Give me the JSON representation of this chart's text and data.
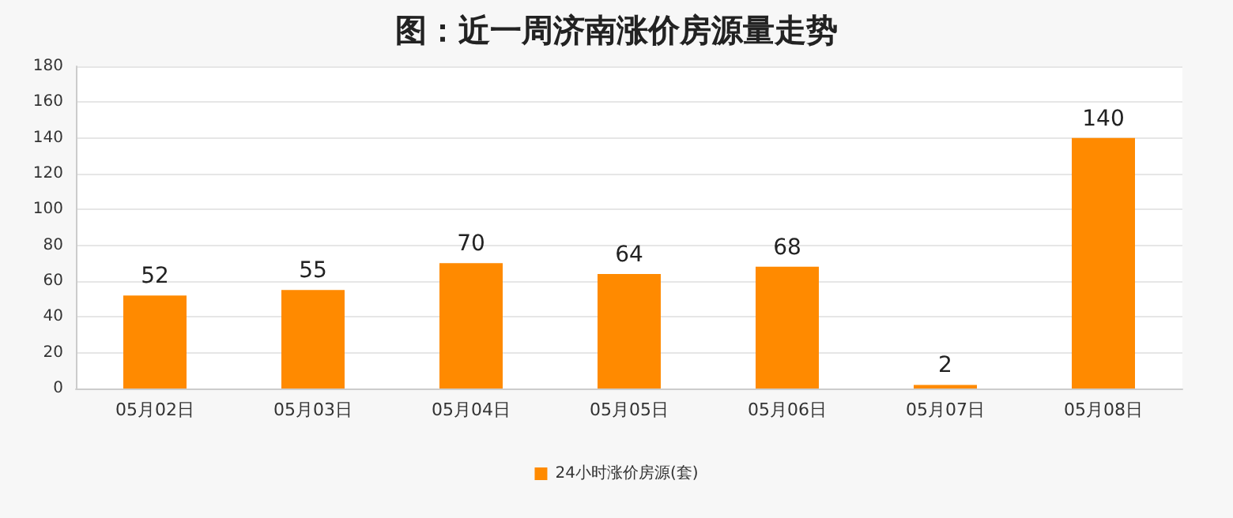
{
  "chart_data": {
    "type": "bar",
    "title": "图：近一周济南涨价房源量走势",
    "categories": [
      "05月02日",
      "05月03日",
      "05月04日",
      "05月05日",
      "05月06日",
      "05月07日",
      "05月08日"
    ],
    "series": [
      {
        "name": "24小时涨价房源(套)",
        "color": "#ff8a00",
        "values": [
          52,
          55,
          70,
          64,
          68,
          2,
          140
        ]
      }
    ],
    "ylim": [
      0,
      180
    ],
    "yticks": [
      0,
      20,
      40,
      60,
      80,
      100,
      120,
      140,
      160,
      180
    ],
    "grid": "y",
    "legend": "bottom",
    "data_labels": true
  }
}
